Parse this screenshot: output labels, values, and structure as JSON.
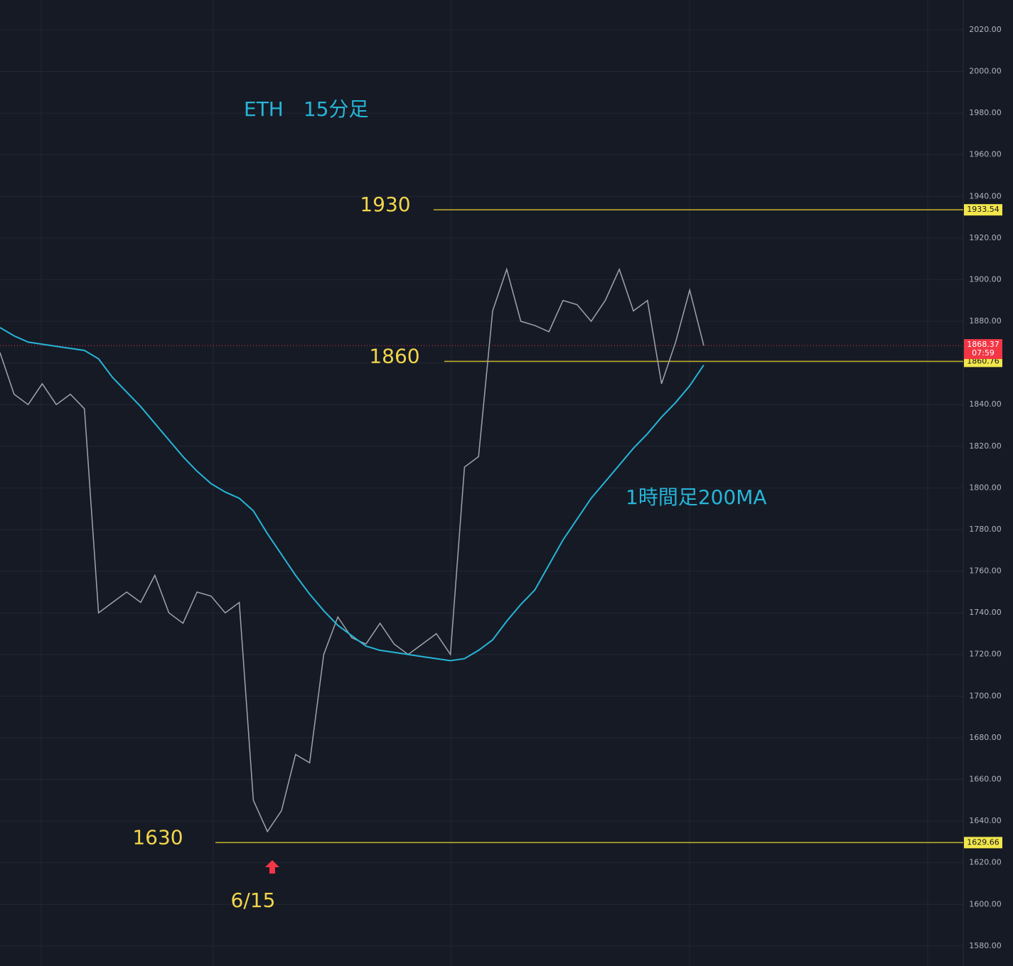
{
  "chart_data": {
    "type": "line",
    "title": "ETH　15分足",
    "ylim": [
      1570.4,
      2034.3
    ],
    "yticks": [
      {
        "value": 1580,
        "label": "1580.00"
      },
      {
        "value": 1600,
        "label": "1600.00"
      },
      {
        "value": 1620,
        "label": "1620.00"
      },
      {
        "value": 1640,
        "label": "1640.00"
      },
      {
        "value": 1660,
        "label": "1660.00"
      },
      {
        "value": 1680,
        "label": "1680.00"
      },
      {
        "value": 1700,
        "label": "1700.00"
      },
      {
        "value": 1720,
        "label": "1720.00"
      },
      {
        "value": 1740,
        "label": "1740.00"
      },
      {
        "value": 1760,
        "label": "1760.00"
      },
      {
        "value": 1780,
        "label": "1780.00"
      },
      {
        "value": 1800,
        "label": "1800.00"
      },
      {
        "value": 1820,
        "label": "1820.00"
      },
      {
        "value": 1840,
        "label": "1840.00"
      },
      {
        "value": 1860,
        "label": "1860.00"
      },
      {
        "value": 1880,
        "label": "1880.00"
      },
      {
        "value": 1900,
        "label": "1900.00"
      },
      {
        "value": 1920,
        "label": "1920.00"
      },
      {
        "value": 1940,
        "label": "1940.00"
      },
      {
        "value": 1960,
        "label": "1960.00"
      },
      {
        "value": 1980,
        "label": "1980.00"
      },
      {
        "value": 2000,
        "label": "2000.00"
      },
      {
        "value": 2020,
        "label": "2020.00"
      }
    ],
    "grid": true,
    "series": [
      {
        "color": "#9ea3ad",
        "values": [
          1865,
          1845,
          1840,
          1850,
          1840,
          1845,
          1838,
          1740,
          1745,
          1750,
          1745,
          1758,
          1740,
          1735,
          1750,
          1748,
          1740,
          1745,
          1650,
          1635,
          1645,
          1672,
          1668,
          1720,
          1738,
          1728,
          1725,
          1735,
          1725,
          1720,
          1725,
          1730,
          1720,
          1810,
          1815,
          1885,
          1905,
          1880,
          1878,
          1875,
          1890,
          1888,
          1880,
          1890,
          1905,
          1885,
          1890,
          1850,
          1870,
          1895,
          1868.37
        ]
      },
      {
        "name": "1時間足200MA",
        "color": "#27b5d8",
        "values": [
          1877,
          1873,
          1870,
          1869,
          1868,
          1867,
          1866,
          1862,
          1853,
          1846,
          1839,
          1831,
          1823,
          1815,
          1808,
          1802,
          1798,
          1795,
          1789,
          1778,
          1768,
          1758,
          1749,
          1741,
          1734,
          1729,
          1724,
          1722,
          1721,
          1720,
          1719,
          1718,
          1717,
          1718,
          1722,
          1727,
          1736,
          1744,
          1751,
          1763,
          1775,
          1785,
          1795,
          1803,
          1811,
          1819,
          1826,
          1834,
          1841,
          1849,
          1859
        ]
      }
    ],
    "levels": [
      {
        "value": 1933.54,
        "label": "1930"
      },
      {
        "value": 1860.76,
        "label": "1860"
      },
      {
        "value": 1629.66,
        "label": "1630"
      }
    ],
    "level_color": "#c9b52c",
    "last_price": 1868.37,
    "countdown": "07:59",
    "marker_label": "6/15"
  }
}
